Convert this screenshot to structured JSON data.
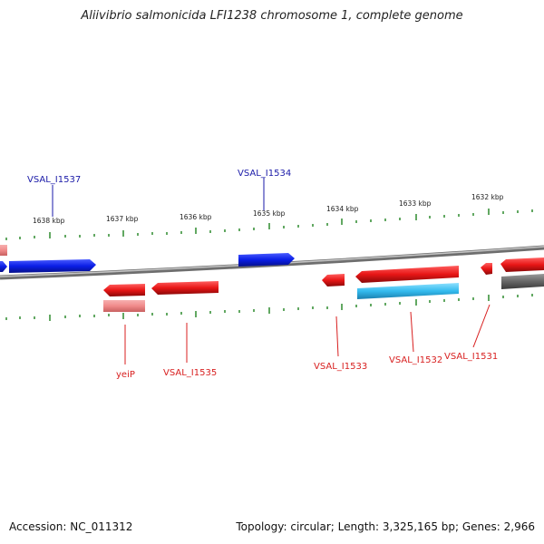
{
  "title": "Aliivibrio salmonicida LFI1238 chromosome 1, complete genome",
  "footer": {
    "accession": "Accession: NC_011312",
    "summary": "Topology: circular; Length: 3,325,165 bp; Genes: 2,966"
  },
  "colors": {
    "backbone": "#8a8a8a",
    "tick": "#2e8b2e",
    "plus_gene": "#0a1ee6",
    "minus_gene": "#e81616",
    "minus_pseudo": "#f08a8a",
    "rna": "#33bbee",
    "other": "#666666",
    "label_plus": "#1a1aa8",
    "label_minus": "#d81f1f"
  },
  "scale_labels": [
    "1638 kbp",
    "1637 kbp",
    "1636 kbp",
    "1635 kbp",
    "1634 kbp",
    "1633 kbp",
    "1632 kbp"
  ],
  "gene_labels": {
    "plus": [
      "VSAL_I1537",
      "VSAL_I1534"
    ],
    "minus": [
      "yeiP",
      "VSAL_I1535",
      "VSAL_I1533",
      "VSAL_I1532",
      "VSAL_I1531"
    ]
  }
}
